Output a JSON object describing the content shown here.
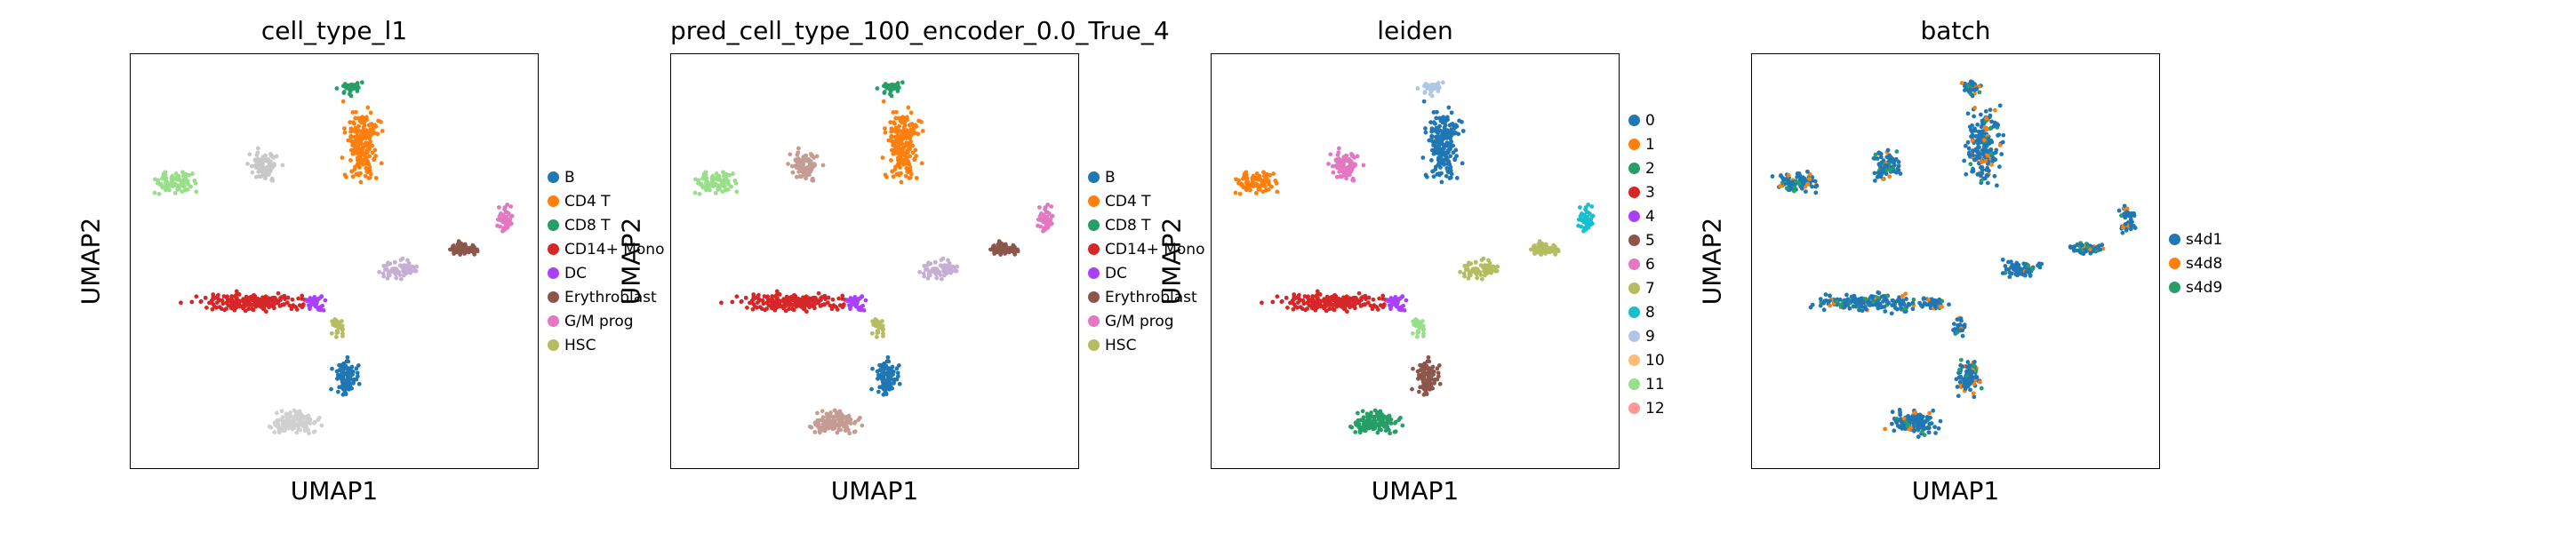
{
  "panels": [
    {
      "title": "cell_type_l1",
      "xlabel": "UMAP1",
      "ylabel": "UMAP2",
      "legend": [
        {
          "label": "B",
          "color": "#1f77b4"
        },
        {
          "label": "CD4 T",
          "color": "#ff7f0e"
        },
        {
          "label": "CD8 T",
          "color": "#279e68"
        },
        {
          "label": "CD14+ Mono",
          "color": "#d62728"
        },
        {
          "label": "DC",
          "color": "#aa40fc"
        },
        {
          "label": "Erythroblast",
          "color": "#8c564b"
        },
        {
          "label": "G/M prog",
          "color": "#e377c2"
        },
        {
          "label": "HSC",
          "color": "#b5bd61"
        }
      ]
    },
    {
      "title": "pred_cell_type_100_encoder_0.0_True_4",
      "xlabel": "UMAP1",
      "ylabel": "UMAP2",
      "legend": [
        {
          "label": "B",
          "color": "#1f77b4"
        },
        {
          "label": "CD4 T",
          "color": "#ff7f0e"
        },
        {
          "label": "CD8 T",
          "color": "#279e68"
        },
        {
          "label": "CD14+ Mono",
          "color": "#d62728"
        },
        {
          "label": "DC",
          "color": "#aa40fc"
        },
        {
          "label": "Erythroblast",
          "color": "#8c564b"
        },
        {
          "label": "G/M prog",
          "color": "#e377c2"
        },
        {
          "label": "HSC",
          "color": "#b5bd61"
        }
      ]
    },
    {
      "title": "leiden",
      "xlabel": "UMAP1",
      "ylabel": "UMAP2",
      "legend": [
        {
          "label": "0",
          "color": "#1f77b4"
        },
        {
          "label": "1",
          "color": "#ff7f0e"
        },
        {
          "label": "2",
          "color": "#279e68"
        },
        {
          "label": "3",
          "color": "#d62728"
        },
        {
          "label": "4",
          "color": "#aa40fc"
        },
        {
          "label": "5",
          "color": "#8c564b"
        },
        {
          "label": "6",
          "color": "#e377c2"
        },
        {
          "label": "7",
          "color": "#b5bd61"
        },
        {
          "label": "8",
          "color": "#17becf"
        },
        {
          "label": "9",
          "color": "#aec7e8"
        },
        {
          "label": "10",
          "color": "#ffbb78"
        },
        {
          "label": "11",
          "color": "#98df8a"
        },
        {
          "label": "12",
          "color": "#ff9896"
        }
      ]
    },
    {
      "title": "batch",
      "xlabel": "UMAP1",
      "ylabel": "UMAP2",
      "legend": [
        {
          "label": "s4d1",
          "color": "#1f77b4"
        },
        {
          "label": "s4d8",
          "color": "#ff7f0e"
        },
        {
          "label": "s4d9",
          "color": "#279e68"
        }
      ]
    }
  ],
  "chart_data": [
    {
      "type": "scatter",
      "title": "cell_type_l1",
      "xlabel": "UMAP1",
      "ylabel": "UMAP2",
      "series": [
        {
          "name": "B"
        },
        {
          "name": "CD4 T"
        },
        {
          "name": "CD8 T"
        },
        {
          "name": "CD14+ Mono"
        },
        {
          "name": "DC"
        },
        {
          "name": "Erythroblast"
        },
        {
          "name": "G/M prog"
        },
        {
          "name": "HSC"
        }
      ]
    },
    {
      "type": "scatter",
      "title": "pred_cell_type_100_encoder_0.0_True_4",
      "xlabel": "UMAP1",
      "ylabel": "UMAP2",
      "series": [
        {
          "name": "B"
        },
        {
          "name": "CD4 T"
        },
        {
          "name": "CD8 T"
        },
        {
          "name": "CD14+ Mono"
        },
        {
          "name": "DC"
        },
        {
          "name": "Erythroblast"
        },
        {
          "name": "G/M prog"
        },
        {
          "name": "HSC"
        }
      ]
    },
    {
      "type": "scatter",
      "title": "leiden",
      "xlabel": "UMAP1",
      "ylabel": "UMAP2",
      "series": [
        {
          "name": "0"
        },
        {
          "name": "1"
        },
        {
          "name": "2"
        },
        {
          "name": "3"
        },
        {
          "name": "4"
        },
        {
          "name": "5"
        },
        {
          "name": "6"
        },
        {
          "name": "7"
        },
        {
          "name": "8"
        },
        {
          "name": "9"
        },
        {
          "name": "10"
        },
        {
          "name": "11"
        },
        {
          "name": "12"
        }
      ]
    },
    {
      "type": "scatter",
      "title": "batch",
      "xlabel": "UMAP1",
      "ylabel": "UMAP2",
      "series": [
        {
          "name": "s4d1"
        },
        {
          "name": "s4d8"
        },
        {
          "name": "s4d9"
        }
      ]
    }
  ]
}
